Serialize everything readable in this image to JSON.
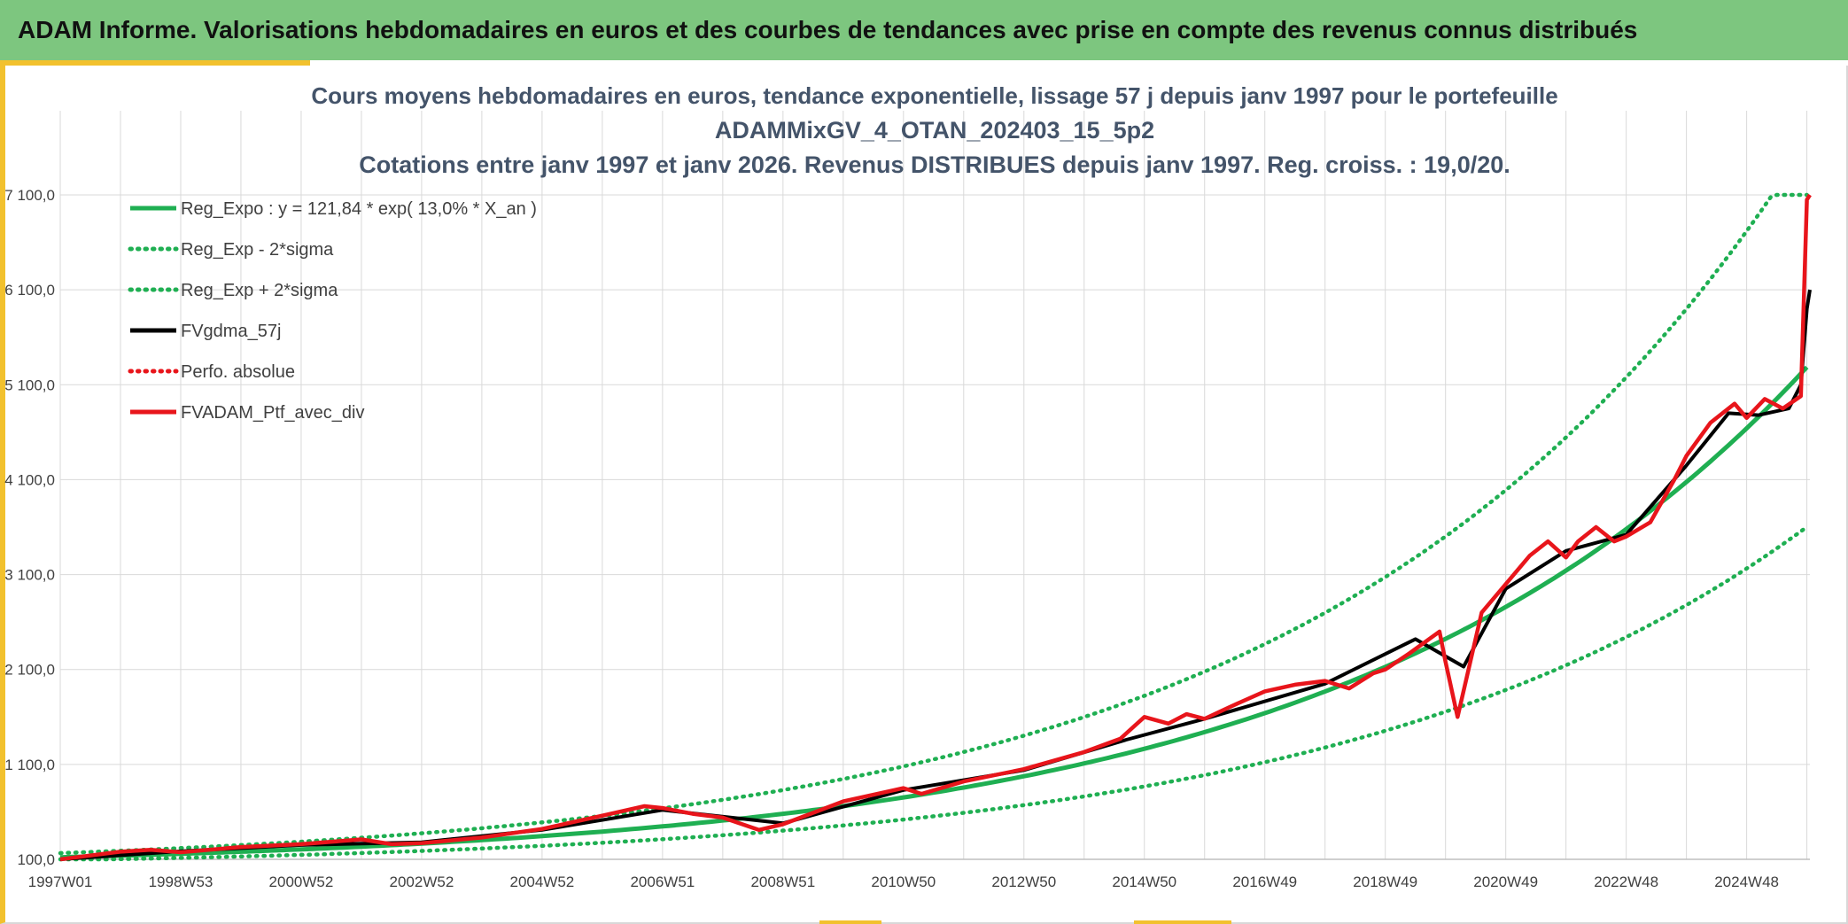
{
  "header": {
    "title": "ADAM Informe. Valorisations hebdomadaires en euros et des courbes de tendances avec prise en compte des revenus connus distribués"
  },
  "colors": {
    "banner": "#7dc67f",
    "accent": "#f2c12e",
    "reg_expo": "#1faf52",
    "fv_gdma": "#000000",
    "fv_adam": "#e8151b",
    "grid": "#d9d9d9"
  },
  "chart_data": {
    "type": "line",
    "title": [
      "Cours moyens hebdomadaires en euros, tendance exponentielle, lissage 57 j depuis janv 1997 pour le portefeuille",
      "ADAMMixGV_4_OTAN_202403_15_5p2",
      "Cotations entre janv 1997 et janv 2026. Revenus DISTRIBUES depuis janv 1997. Reg. croiss. : 19,0/20."
    ],
    "xlabel": "",
    "ylabel": "",
    "x_range": [
      1997.0,
      2026.05
    ],
    "ylim": [
      100,
      7100
    ],
    "y_ticks": [
      100,
      1100,
      2100,
      3100,
      4100,
      5100,
      6100,
      7100
    ],
    "y_tick_labels": [
      "100,0",
      "1 100,0",
      "2 100,0",
      "3 100,0",
      "4 100,0",
      "5 100,0",
      "6 100,0",
      "7 100,0"
    ],
    "x_ticks": [
      1997.0,
      1999.0,
      2001.0,
      2003.0,
      2005.0,
      2007.0,
      2009.0,
      2011.0,
      2013.0,
      2015.0,
      2017.0,
      2019.0,
      2021.0,
      2023.0,
      2025.0
    ],
    "x_tick_labels": [
      "1997W01",
      "1998W53",
      "2000W52",
      "2002W52",
      "2004W52",
      "2006W51",
      "2008W51",
      "2010W50",
      "2012W50",
      "2014W50",
      "2016W49",
      "2018W49",
      "2020W49",
      "2022W48",
      "2024W48"
    ],
    "grid": true,
    "legend_position": "top-left",
    "legend": [
      {
        "label": "Reg_Expo : y = 121,84 * exp( 13,0% *  X_an )",
        "style": "solid",
        "color": "#1faf52"
      },
      {
        "label": "Reg_Exp - 2*sigma",
        "style": "dotted",
        "color": "#1faf52"
      },
      {
        "label": "Reg_Exp + 2*sigma",
        "style": "dotted",
        "color": "#1faf52"
      },
      {
        "label": "FVgdma_57j",
        "style": "solid",
        "color": "#000000"
      },
      {
        "label": "Perfo. absolue",
        "style": "dotted",
        "color": "#e8151b"
      },
      {
        "label": "FVADAM_Ptf_avec_div",
        "style": "solid",
        "color": "#e8151b"
      }
    ],
    "regression": {
      "a": 121.84,
      "rate": 0.13,
      "upper_factor": 1.45,
      "lower_factor": 0.68
    },
    "series": [
      {
        "name": "FVADAM_Ptf_avec_div",
        "x": [
          1997.0,
          1998.0,
          1998.5,
          1999.0,
          2000.0,
          2001.0,
          2002.0,
          2002.5,
          2003.0,
          2004.0,
          2005.0,
          2006.0,
          2006.7,
          2007.0,
          2007.5,
          2008.0,
          2008.6,
          2009.0,
          2010.0,
          2011.0,
          2011.3,
          2012.0,
          2013.0,
          2014.0,
          2014.6,
          2015.0,
          2015.4,
          2015.7,
          2016.0,
          2016.4,
          2017.0,
          2017.5,
          2018.0,
          2018.4,
          2018.8,
          2019.0,
          2019.4,
          2019.9,
          2020.0,
          2020.2,
          2020.6,
          2021.0,
          2021.4,
          2021.7,
          2022.0,
          2022.2,
          2022.5,
          2022.8,
          2023.0,
          2023.4,
          2023.8,
          2024.0,
          2024.4,
          2024.8,
          2025.0,
          2025.3,
          2025.6,
          2025.9,
          2026.0,
          2026.05
        ],
        "y": [
          100,
          180,
          200,
          175,
          230,
          260,
          310,
          260,
          270,
          330,
          420,
          560,
          660,
          640,
          580,
          540,
          410,
          470,
          710,
          850,
          790,
          920,
          1050,
          1230,
          1370,
          1600,
          1530,
          1630,
          1580,
          1700,
          1870,
          1940,
          1980,
          1900,
          2060,
          2100,
          2270,
          2500,
          2180,
          1600,
          2700,
          3000,
          3300,
          3450,
          3280,
          3450,
          3600,
          3450,
          3500,
          3650,
          4100,
          4350,
          4700,
          4900,
          4750,
          4950,
          4850,
          4980,
          7050,
          7100
        ]
      },
      {
        "name": "FVgdma_57j",
        "x": [
          1997.0,
          1999.0,
          2001.0,
          2003.0,
          2005.0,
          2007.0,
          2009.0,
          2011.0,
          2013.0,
          2014.7,
          2016.0,
          2018.0,
          2019.5,
          2020.3,
          2021.0,
          2022.0,
          2023.0,
          2024.0,
          2024.7,
          2025.2,
          2025.7,
          2025.9,
          2026.0,
          2026.05
        ],
        "y": [
          100,
          185,
          250,
          280,
          410,
          620,
          480,
          830,
          1040,
          1360,
          1580,
          1950,
          2420,
          2130,
          2950,
          3350,
          3520,
          4250,
          4800,
          4780,
          4850,
          5100,
          5900,
          6100
        ]
      }
    ]
  }
}
